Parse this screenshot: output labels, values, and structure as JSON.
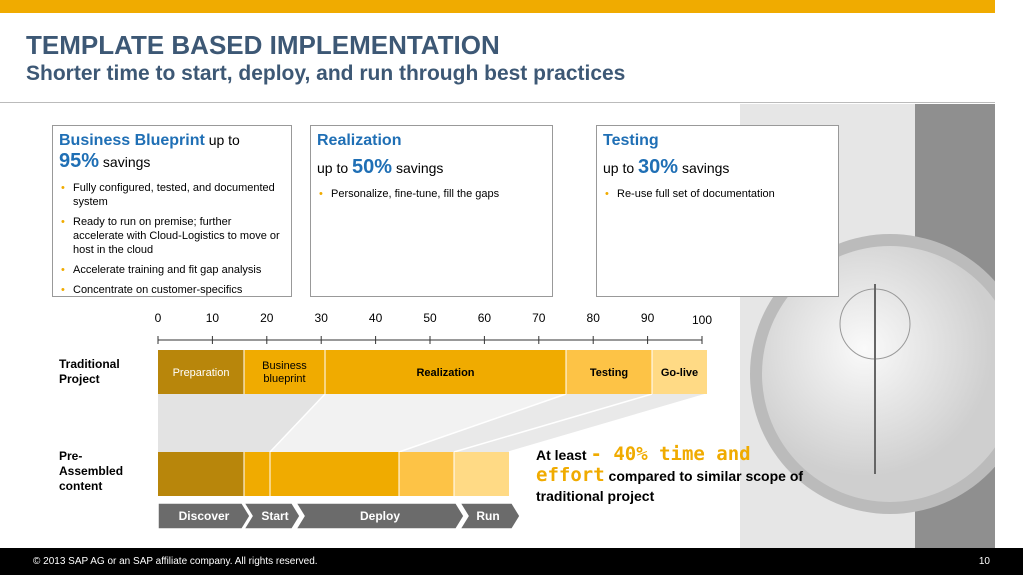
{
  "header": {
    "title": "TEMPLATE BASED IMPLEMENTATION",
    "subtitle": "Shorter time to start, deploy, and run through best practices"
  },
  "boxes": [
    {
      "title": "Business Blueprint",
      "prefix": "up to",
      "percent": "95%",
      "suffix": "savings",
      "bullets": [
        "Fully configured, tested, and documented system",
        "Ready to run on premise; further accelerate with Cloud-Logistics to move or host in the cloud",
        "Accelerate training and fit gap analysis",
        "Concentrate on customer-specifics"
      ]
    },
    {
      "title": "Realization",
      "prefix": "up to",
      "percent": "50%",
      "suffix": "savings",
      "bullets": [
        "Personalize, fine-tune, fill the gaps"
      ]
    },
    {
      "title": "Testing",
      "prefix": "up to",
      "percent": "30%",
      "suffix": "savings",
      "bullets": [
        "Re-use full set of documentation"
      ]
    }
  ],
  "scale": {
    "ticks": [
      "0",
      "10",
      "20",
      "30",
      "40",
      "50",
      "60",
      "70",
      "80",
      "90",
      "100"
    ]
  },
  "rows": [
    "Traditional Project",
    "Pre-Assembled content"
  ],
  "segments": [
    "Preparation",
    "Business blueprint",
    "Realization",
    "Testing",
    "Go-live"
  ],
  "phases": [
    "Discover",
    "Start",
    "Deploy",
    "Run"
  ],
  "callout": {
    "lead": "At least",
    "highlight": "- 40% time and effort",
    "rest": "compared to similar scope of traditional project"
  },
  "footer": {
    "copyright": "©  2013 SAP AG or an SAP affiliate company. All rights reserved.",
    "page": "10"
  }
}
